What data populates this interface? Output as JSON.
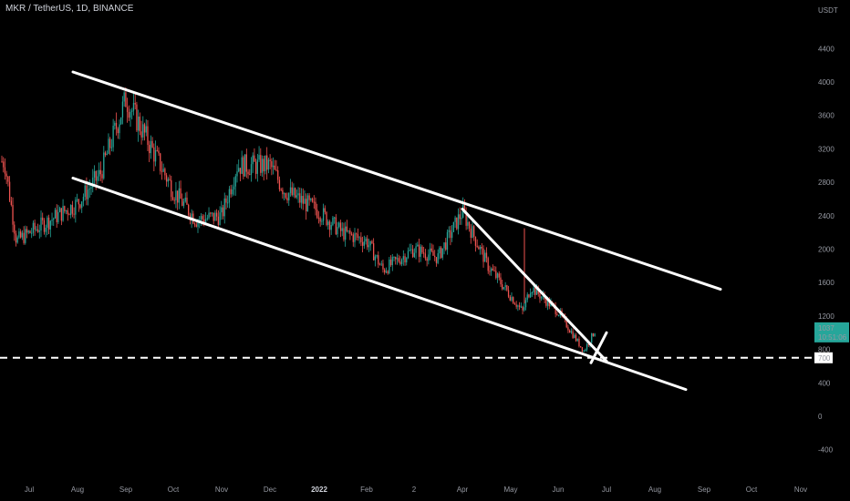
{
  "header": {
    "symbol_line": "MKR / TetherUS, 1D, BINANCE"
  },
  "colors": {
    "background": "#000000",
    "candle_up": "#26a69a",
    "candle_down": "#ef5350",
    "trendline": "#ffffff",
    "axis_text": "#9598a1",
    "price_label_bg": "#26a69a"
  },
  "chart_data": {
    "type": "candlestick",
    "title": "MKR / TetherUS, 1D, BINANCE",
    "x_axis": {
      "labels": [
        "Jul",
        "Aug",
        "Sep",
        "Oct",
        "Nov",
        "Dec",
        "2022",
        "Feb",
        "2",
        "Apr",
        "May",
        "Jun",
        "Jul",
        "Aug",
        "Sep",
        "Oct",
        "Nov"
      ],
      "bold_labels": [
        "2022"
      ]
    },
    "y_axis": {
      "unit": "USDT",
      "ticks": [
        4400,
        4000,
        3600,
        3200,
        2800,
        2400,
        2000,
        1600,
        1200,
        800,
        400,
        0,
        -400
      ],
      "range": [
        -700,
        4900
      ],
      "position": "right"
    },
    "price_anchors": {
      "x": [
        "Jul",
        "mid-Jul",
        "Aug",
        "mid-Aug",
        "Sep",
        "mid-Sep",
        "Oct",
        "mid-Oct",
        "Nov",
        "mid-Nov",
        "Dec",
        "mid-Dec",
        "2022",
        "mid-Jan",
        "Feb",
        "mid-Feb",
        "2",
        "mid-Mar",
        "Apr",
        "mid-Apr",
        "May",
        "mid-May",
        "Jun",
        "mid-Jun",
        "late-Jun"
      ],
      "close": [
        3050,
        2100,
        2550,
        2900,
        3800,
        3550,
        2700,
        2350,
        2400,
        3000,
        3000,
        2700,
        2450,
        2200,
        2100,
        1750,
        2000,
        1900,
        2450,
        1800,
        1250,
        1550,
        1250,
        780,
        1037
      ]
    },
    "current_price": {
      "value": "1037",
      "countdown": "10:51:06"
    },
    "level_label": "700",
    "horizontal_level": 700,
    "trendlines": [
      {
        "name": "channel-upper",
        "from": [
          "late-Jul",
          4120
        ],
        "to": [
          "early-Sep",
          1520
        ]
      },
      {
        "name": "channel-lower",
        "from": [
          "late-Jul",
          2850
        ],
        "to": [
          "late-Aug",
          320
        ]
      },
      {
        "name": "descending-resistance",
        "from": [
          "Apr",
          2480
        ],
        "to": [
          "Jul",
          660
        ]
      },
      {
        "name": "breakout-line",
        "from": [
          "late-Jun",
          640
        ],
        "to": [
          "Jul",
          1000
        ]
      }
    ],
    "grid": false,
    "legend": "none"
  }
}
